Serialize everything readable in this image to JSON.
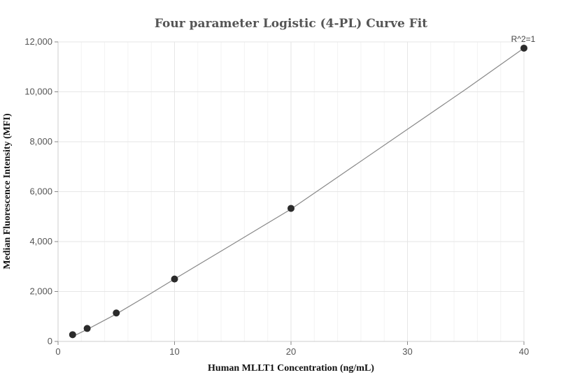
{
  "chart_data": {
    "type": "scatter",
    "title": "Four parameter Logistic (4-PL) Curve Fit",
    "xlabel": "Human MLLT1 Concentration (ng/mL)",
    "ylabel": "Median Fluorescence Intensity (MFI)",
    "xlim": [
      0,
      40
    ],
    "ylim": [
      0,
      12000
    ],
    "x_ticks": [
      0,
      10,
      20,
      30,
      40
    ],
    "y_ticks": [
      0,
      2000,
      4000,
      6000,
      8000,
      10000,
      12000
    ],
    "x_tick_labels": [
      "0",
      "10",
      "20",
      "30",
      "40"
    ],
    "y_tick_labels": [
      "0",
      "2,000",
      "4,000",
      "6,000",
      "8,000",
      "10,000",
      "12,000"
    ],
    "grid": true,
    "points": [
      {
        "x": 1.25,
        "y": 270
      },
      {
        "x": 2.5,
        "y": 520
      },
      {
        "x": 5,
        "y": 1140
      },
      {
        "x": 10,
        "y": 2500
      },
      {
        "x": 20,
        "y": 5330
      },
      {
        "x": 40,
        "y": 11750
      }
    ],
    "fit_curve": [
      [
        1.25,
        200
      ],
      [
        2.5,
        480
      ],
      [
        5,
        1100
      ],
      [
        7.5,
        1790
      ],
      [
        10,
        2500
      ],
      [
        15,
        3900
      ],
      [
        20,
        5300
      ],
      [
        25,
        6900
      ],
      [
        30,
        8500
      ],
      [
        35,
        10100
      ],
      [
        40,
        11750
      ]
    ],
    "annotation": "R^2=1",
    "colors": {
      "point": "#2b2b2b",
      "curve": "#888888",
      "grid": "#e6e6e6"
    }
  }
}
